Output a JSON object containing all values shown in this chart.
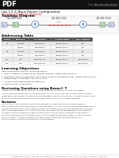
{
  "title": "Lab 1.5.2: Basic Router Configuration",
  "subtitle": "(Catalyst/College Version)",
  "cisco_label": "Cisco  Networking Academy®",
  "section1": "Topology Diagram",
  "network_labels": [
    "192.168.1.0/24",
    "192.168.2.0/24",
    "192.168.3.0/24"
  ],
  "serial_label": "serial",
  "section2": "Addressing Table",
  "table_headers": [
    "Device",
    "Interface",
    "IP Address",
    "Subnet Mask",
    "Def. Gateway"
  ],
  "table_rows": [
    [
      "R1",
      "FastEth0",
      "192.168.1.1",
      "255.255.255.0",
      "N/A"
    ],
    [
      "",
      "Serial0",
      "192.168.2.1",
      "255.255.255.0",
      "N/A"
    ],
    [
      "R2",
      "FastEth0",
      "192.168.3.1",
      "255.255.255.0",
      "N/A"
    ],
    [
      "",
      "Serial0",
      "192.168.2.2",
      "255.255.255.0",
      "N/A"
    ],
    [
      "PC1",
      "NI-A",
      "192.168.1.10",
      "255.255.255.0",
      "192.168.1.1"
    ],
    [
      "PC2",
      "NI-A",
      "192.168.3.10",
      "255.255.255.0",
      "192.168.3.1"
    ]
  ],
  "section3": "Learning Objectives",
  "objectives": [
    "Upon completion of this lab, you will be able to:",
    "1  Cable a network according to the Topology Diagram. (Networking Lab only)",
    "2  Determine startup configuration and network routes for the default state. (Networking Lab only)",
    "3  Perform basic configuration tasks on a router.",
    "4  Configure and activate Ethernet interfaces.",
    "5  Test and verify configurations."
  ],
  "section4": "Reviewing Questions using Boson® T",
  "boson_text": "There will be questions for you to answer throughout this lab. Use BOSON to record your answers.\n\nIf you are having problems with the lab, Boson machine. Consult with your specific question with the flash\nadvantage you are allowed, only essential subject answers, consult training scripts. As a bonus method: Bring\nyour tutoring coverage to the front room, only appropriate scripts are only specific questions.",
  "section5": "Scenario",
  "scenario_text": "In this activity, you will create a network that is similar to the one shown in the Topology Diagram. A\nlab describes using all the crafting then virtually fixes others. If you are using the Catalyst Networking Lab, the\nfinal lab challenge. You will also configure an intern in the Networking Quickly (abbreviated lab) using some\nrouter configurations required for connectivity. Use the IP addresses that are presented in the Addressing\nDiagram to assign an appropriate address to the selected terminal. When the network configuration is\ncomplete, download the routing before to verify that the network is working properly. This lab is a shorter\nversion of lab 1.5.1: Configure Networks and Basic Router Configuration and associate you are\npracticed on basic routing and configuration lab management.",
  "footer": "All contents are Copyright © 1992-2007 Cisco Systems, Inc. All rights reserved. This document is Cisco Public Information.    Page 1 of 10",
  "bg_color": "#ffffff",
  "header_bg": "#111111",
  "pdf_label_color": "#ffffff",
  "title_color": "#000000",
  "subtitle_color": "#cc0000",
  "section_color": "#000000",
  "table_header_bg": "#555555",
  "table_header_fg": "#ffffff",
  "topology_bg": "#f8f8f8"
}
